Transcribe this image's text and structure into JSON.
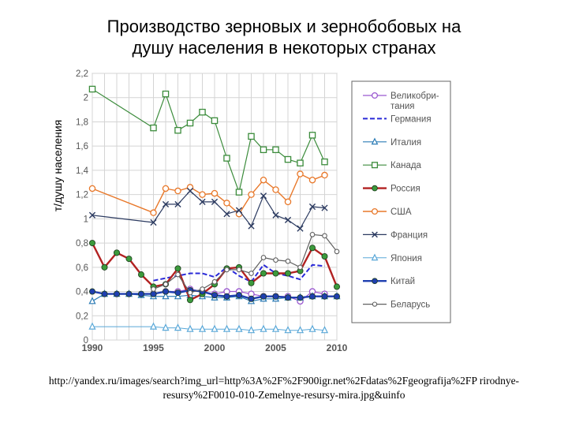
{
  "chart_data": {
    "type": "line",
    "title_lines": [
      "Производство зерновых и зернобобовых на",
      "душу населения в некоторых странах"
    ],
    "ylabel": "т/душу населения",
    "xlabel": "",
    "xlim": [
      1990,
      2010
    ],
    "ylim": [
      0,
      2.2
    ],
    "x_ticks": [
      1990,
      1995,
      2000,
      2005,
      2010
    ],
    "y_ticks": [
      "0",
      "0,2",
      "0,4",
      "0,6",
      "0,8",
      "1",
      "1,2",
      "1,4",
      "1,6",
      "1,8",
      "2",
      "2,2"
    ],
    "grid": true,
    "legend_position": "right",
    "series": [
      {
        "name": "Великобритания",
        "legend_lines": [
          "Великобри-",
          "тания"
        ],
        "color": "#9b59d0",
        "marker": "circle-open",
        "width": 1.2,
        "dash": "",
        "x": [
          1995,
          1996,
          1997,
          1998,
          1999,
          2000,
          2001,
          2002,
          2003,
          2004,
          2005,
          2006,
          2007,
          2008,
          2009
        ],
        "y": [
          0.38,
          0.4,
          0.4,
          0.42,
          0.4,
          0.38,
          0.4,
          0.4,
          0.38,
          0.36,
          0.36,
          0.36,
          0.32,
          0.4,
          0.38
        ]
      },
      {
        "name": "Германия",
        "legend_lines": [
          "Германия"
        ],
        "color": "#2a2ad8",
        "marker": "none",
        "width": 2,
        "dash": "6 3",
        "x": [
          1995,
          1996,
          1997,
          1998,
          1999,
          2000,
          2001,
          2002,
          2003,
          2004,
          2005,
          2006,
          2007,
          2008,
          2009
        ],
        "y": [
          0.49,
          0.51,
          0.53,
          0.55,
          0.55,
          0.52,
          0.6,
          0.53,
          0.48,
          0.62,
          0.55,
          0.53,
          0.5,
          0.62,
          0.61
        ]
      },
      {
        "name": "Италия",
        "legend_lines": [
          "Италия"
        ],
        "color": "#2b7bb5",
        "marker": "triangle-open",
        "width": 1.2,
        "dash": "",
        "x": [
          1990,
          1991,
          1992,
          1993,
          1994,
          1995,
          1996,
          1997,
          1998,
          1999,
          2000,
          2001,
          2002,
          2003,
          2004,
          2005,
          2006,
          2007,
          2008,
          2009,
          2010
        ],
        "y": [
          0.32,
          0.38,
          0.38,
          0.38,
          0.37,
          0.36,
          0.36,
          0.36,
          0.37,
          0.36,
          0.35,
          0.35,
          0.36,
          0.32,
          0.34,
          0.34,
          0.35,
          0.35,
          0.36,
          0.36,
          0.36
        ]
      },
      {
        "name": "Канада",
        "legend_lines": [
          "Канада"
        ],
        "color": "#3c8c3c",
        "marker": "square-open",
        "width": 1.2,
        "dash": "",
        "x": [
          1990,
          1995,
          1996,
          1997,
          1998,
          1999,
          2000,
          2001,
          2002,
          2003,
          2004,
          2005,
          2006,
          2007,
          2008,
          2009
        ],
        "y": [
          2.07,
          1.75,
          2.03,
          1.73,
          1.79,
          1.88,
          1.81,
          1.5,
          1.22,
          1.68,
          1.57,
          1.57,
          1.49,
          1.46,
          1.69,
          1.47
        ]
      },
      {
        "name": "Россия",
        "legend_lines": [
          "Россия"
        ],
        "color": "#b22222",
        "marker": "circle-filled",
        "markerFill": "#3c9a3c",
        "width": 2.4,
        "dash": "",
        "x": [
          1990,
          1991,
          1992,
          1993,
          1994,
          1995,
          1996,
          1997,
          1998,
          1999,
          2000,
          2001,
          2002,
          2003,
          2004,
          2005,
          2006,
          2007,
          2008,
          2009,
          2010
        ],
        "y": [
          0.8,
          0.6,
          0.72,
          0.67,
          0.54,
          0.44,
          0.46,
          0.59,
          0.33,
          0.38,
          0.46,
          0.59,
          0.6,
          0.47,
          0.55,
          0.55,
          0.55,
          0.57,
          0.76,
          0.69,
          0.44
        ]
      },
      {
        "name": "США",
        "legend_lines": [
          "США"
        ],
        "color": "#e8782a",
        "marker": "circle-open",
        "width": 1.4,
        "dash": "",
        "x": [
          1990,
          1995,
          1996,
          1997,
          1998,
          1999,
          2000,
          2001,
          2002,
          2003,
          2004,
          2005,
          2006,
          2007,
          2008,
          2009
        ],
        "y": [
          1.25,
          1.05,
          1.25,
          1.23,
          1.26,
          1.2,
          1.21,
          1.13,
          1.04,
          1.2,
          1.32,
          1.24,
          1.14,
          1.37,
          1.32,
          1.36
        ]
      },
      {
        "name": "Франция",
        "legend_lines": [
          "Франция"
        ],
        "color": "#2b3a60",
        "marker": "x",
        "width": 1.2,
        "dash": "",
        "x": [
          1990,
          1995,
          1996,
          1997,
          1998,
          1999,
          2000,
          2001,
          2002,
          2003,
          2004,
          2005,
          2006,
          2007,
          2008,
          2009
        ],
        "y": [
          1.03,
          0.97,
          1.12,
          1.12,
          1.23,
          1.14,
          1.14,
          1.04,
          1.07,
          0.94,
          1.19,
          1.03,
          0.99,
          0.92,
          1.1,
          1.09
        ]
      },
      {
        "name": "Япония",
        "legend_lines": [
          "Япония"
        ],
        "color": "#5aa8d8",
        "marker": "triangle-open",
        "width": 1,
        "dash": "",
        "x": [
          1990,
          1995,
          1996,
          1997,
          1998,
          1999,
          2000,
          2001,
          2002,
          2003,
          2004,
          2005,
          2006,
          2007,
          2008,
          2009
        ],
        "y": [
          0.11,
          0.11,
          0.1,
          0.1,
          0.09,
          0.09,
          0.09,
          0.09,
          0.09,
          0.08,
          0.09,
          0.09,
          0.08,
          0.08,
          0.09,
          0.08
        ]
      },
      {
        "name": "Китай",
        "legend_lines": [
          "Китай"
        ],
        "color": "#1f3fb0",
        "marker": "circle-filled",
        "markerFill": "#1f3fb0",
        "width": 2.4,
        "dash": "",
        "x": [
          1990,
          1991,
          1992,
          1993,
          1994,
          1995,
          1996,
          1997,
          1998,
          1999,
          2000,
          2001,
          2002,
          2003,
          2004,
          2005,
          2006,
          2007,
          2008,
          2009,
          2010
        ],
        "y": [
          0.4,
          0.38,
          0.38,
          0.38,
          0.38,
          0.38,
          0.4,
          0.39,
          0.41,
          0.4,
          0.37,
          0.36,
          0.37,
          0.34,
          0.36,
          0.36,
          0.35,
          0.35,
          0.36,
          0.36,
          0.36
        ]
      },
      {
        "name": "Беларусь",
        "legend_lines": [
          "Беларусь"
        ],
        "color": "#606060",
        "marker": "circle-open-small",
        "width": 1.2,
        "dash": "",
        "x": [
          1995,
          1996,
          1997,
          1998,
          1999,
          2000,
          2001,
          2002,
          2003,
          2004,
          2005,
          2006,
          2007,
          2008,
          2009,
          2010
        ],
        "y": [
          0.42,
          0.46,
          0.54,
          0.39,
          0.42,
          0.48,
          0.58,
          0.58,
          0.55,
          0.68,
          0.66,
          0.65,
          0.6,
          0.87,
          0.86,
          0.73
        ]
      }
    ]
  },
  "source_text": "http://yandex.ru/images/search?img_url=http%3A%2F%2F900igr.net%2Fdatas%2Fgeografija%2FP rirodnye-resursy%2F0010-010-Zemelnye-resursy-mira.jpg&uinfo"
}
